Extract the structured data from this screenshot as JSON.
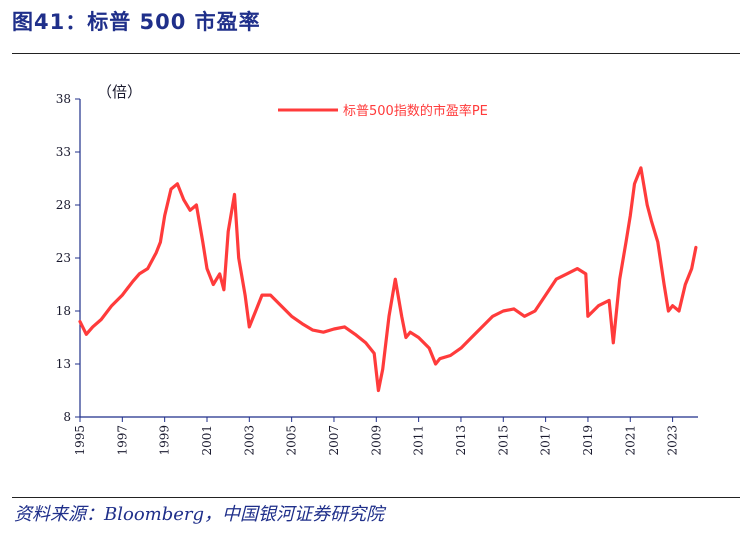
{
  "header": {
    "title": "图41：标普 500 市盈率"
  },
  "footer": {
    "source": "资料来源：Bloomberg，中国银河证券研究院"
  },
  "colors": {
    "series": "#ff3b3b",
    "title": "#1f2f8a",
    "axis": "#1f2f8a"
  },
  "chart_data": {
    "type": "line",
    "title": "标普 500 市盈率",
    "unit_label": "（倍）",
    "xlabel": "",
    "ylabel": "",
    "xlim": [
      1995,
      2024.2
    ],
    "ylim": [
      8,
      38
    ],
    "y_ticks": [
      8,
      13,
      18,
      23,
      28,
      33,
      38
    ],
    "x_ticks": [
      1995,
      1997,
      1999,
      2001,
      2003,
      2005,
      2007,
      2009,
      2011,
      2013,
      2015,
      2017,
      2019,
      2021,
      2023
    ],
    "legend": {
      "placement": "top-center",
      "entries": [
        "标普500指数的市盈率PE"
      ]
    },
    "series": [
      {
        "name": "标普500指数的市盈率PE",
        "x": [
          1995.0,
          1995.3,
          1995.6,
          1996.0,
          1996.5,
          1997.0,
          1997.5,
          1997.8,
          1998.2,
          1998.6,
          1998.8,
          1999.0,
          1999.3,
          1999.6,
          1999.9,
          2000.2,
          2000.5,
          2000.8,
          2001.0,
          2001.3,
          2001.6,
          2001.8,
          2002.0,
          2002.3,
          2002.5,
          2002.8,
          2003.0,
          2003.3,
          2003.6,
          2004.0,
          2004.5,
          2005.0,
          2005.5,
          2006.0,
          2006.5,
          2007.0,
          2007.5,
          2008.0,
          2008.5,
          2008.9,
          2009.1,
          2009.3,
          2009.6,
          2009.9,
          2010.2,
          2010.4,
          2010.6,
          2011.0,
          2011.5,
          2011.8,
          2012.0,
          2012.5,
          2013.0,
          2013.5,
          2014.0,
          2014.5,
          2015.0,
          2015.5,
          2016.0,
          2016.5,
          2017.0,
          2017.5,
          2018.0,
          2018.5,
          2018.9,
          2019.0,
          2019.5,
          2020.0,
          2020.2,
          2020.5,
          2020.8,
          2021.0,
          2021.2,
          2021.5,
          2021.8,
          2022.0,
          2022.3,
          2022.6,
          2022.8,
          2023.0,
          2023.3,
          2023.6,
          2023.9,
          2024.1
        ],
        "values": [
          17.0,
          15.8,
          16.5,
          17.2,
          18.5,
          19.5,
          20.8,
          21.5,
          22.0,
          23.5,
          24.5,
          27.0,
          29.5,
          30.0,
          28.5,
          27.5,
          28.0,
          24.5,
          22.0,
          20.5,
          21.5,
          20.0,
          25.5,
          29.0,
          23.0,
          19.5,
          16.5,
          18.0,
          19.5,
          19.5,
          18.5,
          17.5,
          16.8,
          16.2,
          16.0,
          16.3,
          16.5,
          15.8,
          15.0,
          14.0,
          10.5,
          12.5,
          17.5,
          21.0,
          17.5,
          15.5,
          16.0,
          15.5,
          14.5,
          13.0,
          13.5,
          13.8,
          14.5,
          15.5,
          16.5,
          17.5,
          18.0,
          18.2,
          17.5,
          18.0,
          19.5,
          21.0,
          21.5,
          22.0,
          21.5,
          17.5,
          18.5,
          19.0,
          15.0,
          21.0,
          24.5,
          27.0,
          30.0,
          31.5,
          28.0,
          26.5,
          24.5,
          20.5,
          18.0,
          18.5,
          18.0,
          20.5,
          22.0,
          24.0
        ]
      }
    ]
  }
}
